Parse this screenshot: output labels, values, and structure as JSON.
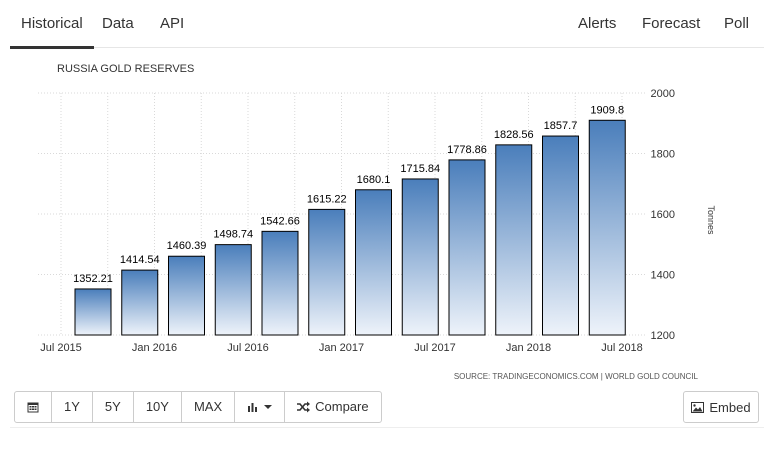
{
  "tabs": {
    "historical": "Historical",
    "data": "Data",
    "api": "API",
    "alerts": "Alerts",
    "forecast": "Forecast",
    "poll": "Poll"
  },
  "toolbar": {
    "calendar_icon": "calendar-icon",
    "btn_1y": "1Y",
    "btn_5y": "5Y",
    "btn_10y": "10Y",
    "btn_max": "MAX",
    "chart_type_icon": "bar-chart-icon",
    "compare_icon": "shuffle-icon",
    "compare_label": "Compare",
    "embed_icon": "image-icon",
    "embed_label": "Embed"
  },
  "chart_data": {
    "type": "bar",
    "title": "RUSSIA GOLD RESERVES",
    "ylabel": "Tonnes",
    "source": "SOURCE: TRADINGECONOMICS.COM | WORLD GOLD COUNCIL",
    "ylim": [
      1200,
      2000
    ],
    "yticks": [
      "1200",
      "1400",
      "1600",
      "1800",
      "2000"
    ],
    "xticks": [
      "Jul 2015",
      "Jan 2016",
      "Jul 2016",
      "Jan 2017",
      "Jul 2017",
      "Jan 2018",
      "Jul 2018"
    ],
    "values": [
      1352.21,
      1414.54,
      1460.39,
      1498.74,
      1542.66,
      1615.22,
      1680.1,
      1715.84,
      1778.86,
      1828.56,
      1857.7,
      1909.8
    ],
    "value_labels": [
      "1352.21",
      "1414.54",
      "1460.39",
      "1498.74",
      "1542.66",
      "1615.22",
      "1680.1",
      "1715.84",
      "1778.86",
      "1828.56",
      "1857.7",
      "1909.8"
    ],
    "bar_color_top": "#4a7ebb",
    "bar_color_bottom": "#eef3fa",
    "grid": true
  }
}
